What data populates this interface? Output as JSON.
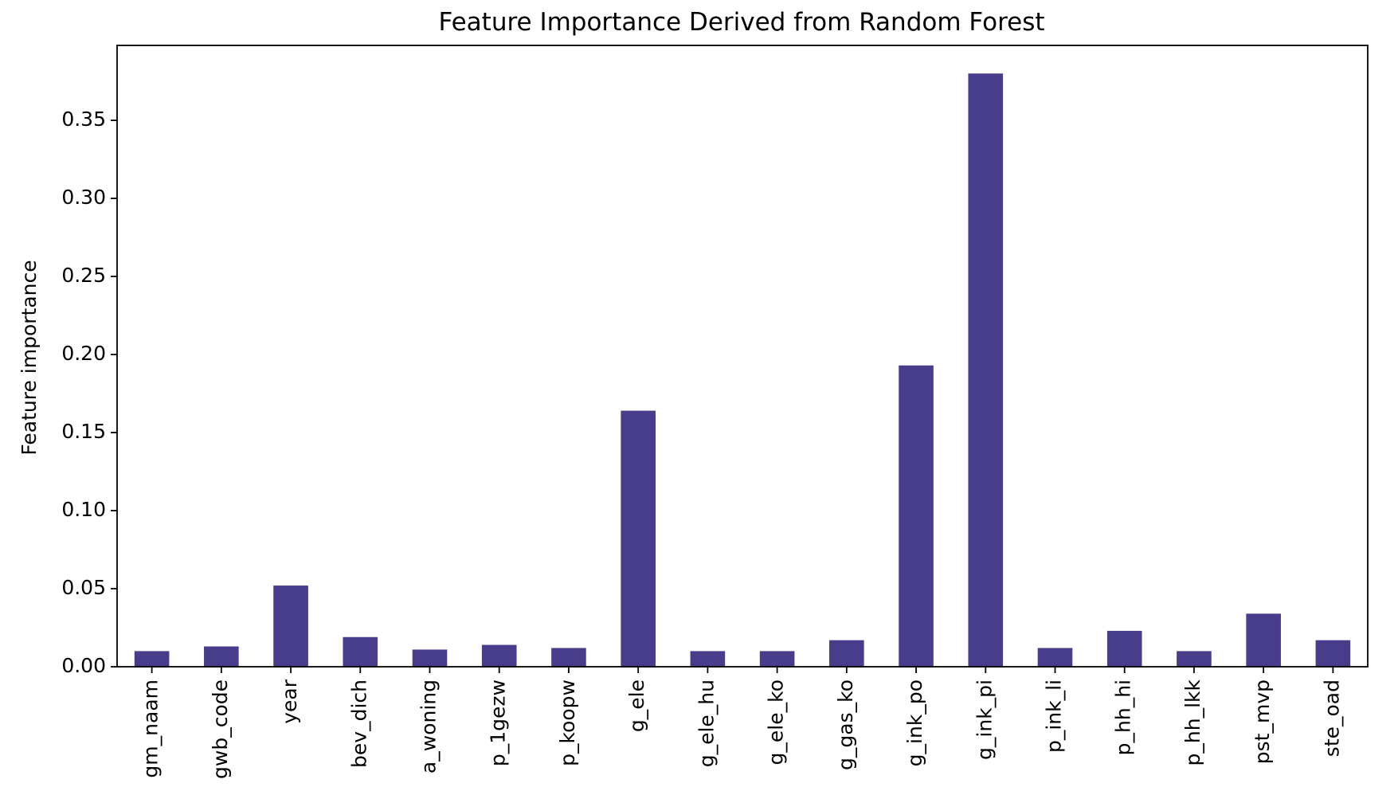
{
  "chart_data": {
    "type": "bar",
    "title": "Feature Importance Derived from Random Forest",
    "xlabel": "",
    "ylabel": "Feature importance",
    "categories": [
      "gm_naam",
      "gwb_code",
      "year",
      "bev_dich",
      "a_woning",
      "p_1gezw",
      "p_koopw",
      "g_ele",
      "g_ele_hu",
      "g_ele_ko",
      "g_gas_ko",
      "g_ink_po",
      "g_ink_pi",
      "p_ink_li",
      "p_hh_hi",
      "p_hh_lkk",
      "pst_mvp",
      "ste_oad"
    ],
    "values": [
      0.01,
      0.013,
      0.052,
      0.019,
      0.011,
      0.014,
      0.012,
      0.164,
      0.01,
      0.01,
      0.017,
      0.193,
      0.38,
      0.012,
      0.023,
      0.01,
      0.034,
      0.017
    ],
    "yticks": [
      0.0,
      0.05,
      0.1,
      0.15,
      0.2,
      0.25,
      0.3,
      0.35
    ],
    "ylim": [
      0,
      0.398
    ],
    "bar_color": "#483d8b",
    "grid": false,
    "legend": "none"
  }
}
